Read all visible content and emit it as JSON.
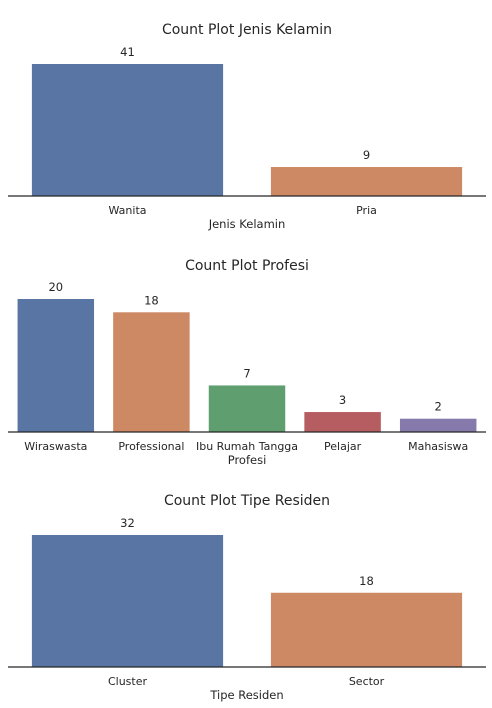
{
  "chart_data": [
    {
      "type": "bar",
      "title": "Count Plot Jenis Kelamin",
      "xlabel": "Jenis Kelamin",
      "ylabel": "",
      "categories": [
        "Wanita",
        "Pria"
      ],
      "values": [
        41,
        9
      ],
      "colors": [
        "#5975a4",
        "#cc8963"
      ],
      "ylim": [
        0,
        41
      ],
      "grid": false
    },
    {
      "type": "bar",
      "title": "Count Plot Profesi",
      "xlabel": "Profesi",
      "ylabel": "",
      "categories": [
        "Wiraswasta",
        "Professional",
        "Ibu Rumah Tangga",
        "Pelajar",
        "Mahasiswa"
      ],
      "values": [
        20,
        18,
        7,
        3,
        2
      ],
      "colors": [
        "#5975a4",
        "#cc8963",
        "#5f9e6e",
        "#b55d60",
        "#857aab"
      ],
      "ylim": [
        0,
        20
      ],
      "grid": false
    },
    {
      "type": "bar",
      "title": "Count Plot Tipe Residen",
      "xlabel": "Tipe Residen",
      "ylabel": "",
      "categories": [
        "Cluster",
        "Sector"
      ],
      "values": [
        32,
        18
      ],
      "colors": [
        "#5975a4",
        "#cc8963"
      ],
      "ylim": [
        0,
        32
      ],
      "grid": false
    }
  ]
}
